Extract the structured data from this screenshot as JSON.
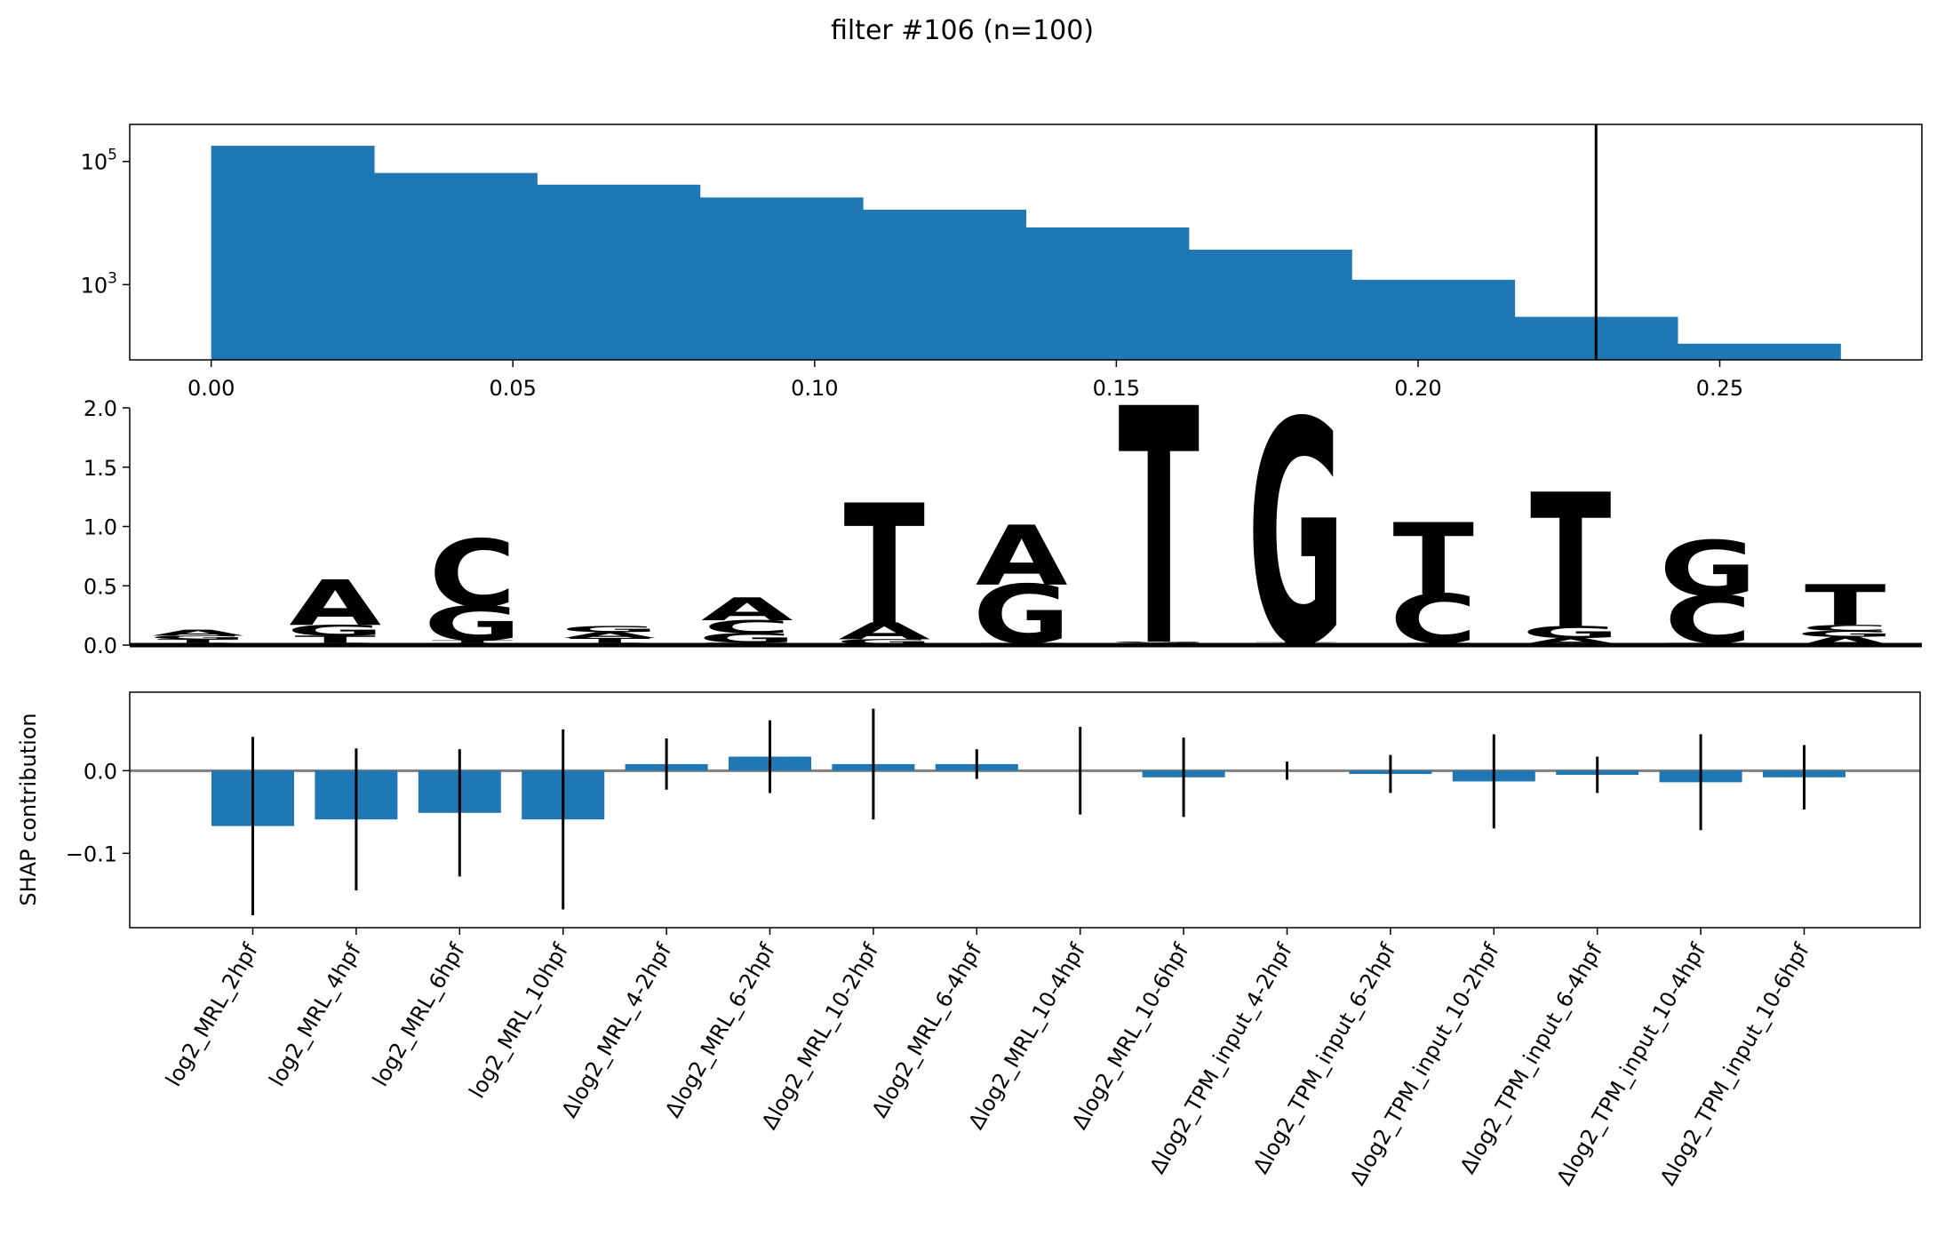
{
  "title": "filter #106 (n=100)",
  "colors": {
    "bar": "#1f77b4",
    "A": "#109648",
    "C": "#255c99",
    "G": "#f7b32b",
    "T": "#e4253d",
    "threshold": "#000000",
    "zero_line": "#808080"
  },
  "chart_data": [
    {
      "type": "histogram",
      "name": "activation-histogram",
      "yscale": "log",
      "xlim": [
        -0.0135,
        0.2835
      ],
      "ylim": [
        60,
        400000
      ],
      "bin_edges": [
        0.0,
        0.027,
        0.054,
        0.081,
        0.108,
        0.135,
        0.162,
        0.189,
        0.216,
        0.243,
        0.27
      ],
      "counts": [
        180000,
        65000,
        42000,
        26000,
        16500,
        8500,
        3700,
        1200,
        300,
        110
      ],
      "x_ticks": [
        0.0,
        0.05,
        0.1,
        0.15,
        0.2,
        0.25
      ],
      "x_tick_labels": [
        "0.00",
        "0.05",
        "0.10",
        "0.15",
        "0.20",
        "0.25"
      ],
      "y_ticks": [
        1000,
        100000
      ],
      "y_tick_labels": [
        {
          "base": "10",
          "exp": "3"
        },
        {
          "base": "10",
          "exp": "5"
        }
      ],
      "threshold": 0.2295
    },
    {
      "type": "sequence_logo",
      "name": "motif-logo",
      "ylim": [
        0,
        2
      ],
      "y_ticks": [
        0,
        0.5,
        1,
        1.5,
        2
      ],
      "y_tick_labels": [
        "0.0",
        "0.5",
        "1.0",
        "1.5",
        "2.0"
      ],
      "positions": [
        [
          {
            "base": "C",
            "h": 0.02
          },
          {
            "base": "T",
            "h": 0.03
          },
          {
            "base": "G",
            "h": 0.03
          },
          {
            "base": "A",
            "h": 0.05
          }
        ],
        [
          {
            "base": "C",
            "h": 0.02
          },
          {
            "base": "T",
            "h": 0.06
          },
          {
            "base": "G",
            "h": 0.09
          },
          {
            "base": "A",
            "h": 0.38
          }
        ],
        [
          {
            "base": "A",
            "h": 0.02
          },
          {
            "base": "T",
            "h": 0.02
          },
          {
            "base": "G",
            "h": 0.29
          },
          {
            "base": "C",
            "h": 0.56
          }
        ],
        [
          {
            "base": "C",
            "h": 0.02
          },
          {
            "base": "T",
            "h": 0.04
          },
          {
            "base": "A",
            "h": 0.05
          },
          {
            "base": "G",
            "h": 0.05
          }
        ],
        [
          {
            "base": "T",
            "h": 0.02
          },
          {
            "base": "G",
            "h": 0.08
          },
          {
            "base": "C",
            "h": 0.11
          },
          {
            "base": "A",
            "h": 0.19
          }
        ],
        [
          {
            "base": "C",
            "h": 0.01
          },
          {
            "base": "G",
            "h": 0.04
          },
          {
            "base": "A",
            "h": 0.14
          },
          {
            "base": "T",
            "h": 1.0
          }
        ],
        [
          {
            "base": "C",
            "h": 0.01
          },
          {
            "base": "T",
            "h": 0.01
          },
          {
            "base": "G",
            "h": 0.49
          },
          {
            "base": "A",
            "h": 0.5
          }
        ],
        [
          {
            "base": "A",
            "h": 0.01
          },
          {
            "base": "C",
            "h": 0.01
          },
          {
            "base": "G",
            "h": 0.01
          },
          {
            "base": "T",
            "h": 1.97
          }
        ],
        [
          {
            "base": "A",
            "h": 0.01
          },
          {
            "base": "C",
            "h": 0.01
          },
          {
            "base": "T",
            "h": 0.01
          },
          {
            "base": "G",
            "h": 1.86
          }
        ],
        [
          {
            "base": "A",
            "h": 0.01
          },
          {
            "base": "G",
            "h": 0.01
          },
          {
            "base": "C",
            "h": 0.41
          },
          {
            "base": "T",
            "h": 0.6
          }
        ],
        [
          {
            "base": "C",
            "h": 0.01
          },
          {
            "base": "A",
            "h": 0.05
          },
          {
            "base": "G",
            "h": 0.1
          },
          {
            "base": "T",
            "h": 1.12
          }
        ],
        [
          {
            "base": "A",
            "h": 0.01
          },
          {
            "base": "T",
            "h": 0.01
          },
          {
            "base": "C",
            "h": 0.4
          },
          {
            "base": "G",
            "h": 0.46
          }
        ],
        [
          {
            "base": "A",
            "h": 0.07
          },
          {
            "base": "G",
            "h": 0.05
          },
          {
            "base": "C",
            "h": 0.05
          },
          {
            "base": "T",
            "h": 0.34
          }
        ]
      ]
    },
    {
      "type": "bar",
      "name": "shap-bars",
      "ylabel": "SHAP contribution",
      "ylim": [
        -0.19,
        0.095
      ],
      "y_ticks": [
        -0.1,
        0.0
      ],
      "y_tick_labels": [
        "−0.1",
        "0.0"
      ],
      "categories": [
        "log2_MRL_2hpf",
        "log2_MRL_4hpf",
        "log2_MRL_6hpf",
        "log2_MRL_10hpf",
        "Δlog2_MRL_4-2hpf",
        "Δlog2_MRL_6-2hpf",
        "Δlog2_MRL_10-2hpf",
        "Δlog2_MRL_6-4hpf",
        "Δlog2_MRL_10-4hpf",
        "Δlog2_MRL_10-6hpf",
        "Δlog2_TPM_input_4-2hpf",
        "Δlog2_TPM_input_6-2hpf",
        "Δlog2_TPM_input_10-2hpf",
        "Δlog2_TPM_input_6-4hpf",
        "Δlog2_TPM_input_10-4hpf",
        "Δlog2_TPM_input_10-6hpf"
      ],
      "values": [
        -0.067,
        -0.059,
        -0.051,
        -0.059,
        0.008,
        0.017,
        0.008,
        0.008,
        0.0,
        -0.008,
        0.0,
        -0.004,
        -0.013,
        -0.005,
        -0.014,
        -0.008
      ],
      "errors": [
        0.108,
        0.086,
        0.077,
        0.109,
        0.031,
        0.044,
        0.067,
        0.018,
        0.053,
        0.048,
        0.011,
        0.023,
        0.057,
        0.022,
        0.058,
        0.039
      ]
    }
  ]
}
